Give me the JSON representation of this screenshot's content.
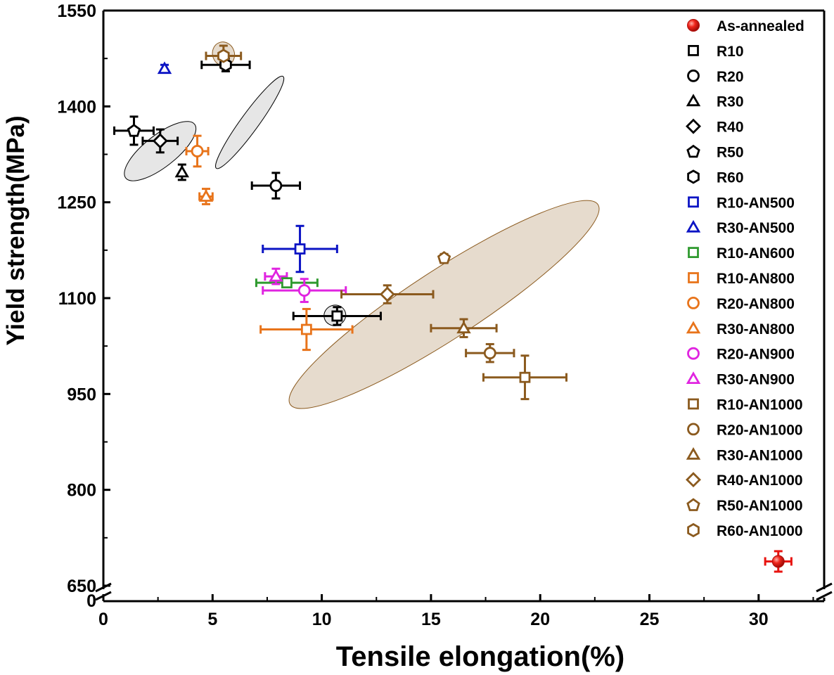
{
  "chart_data": {
    "type": "scatter",
    "xlabel": "Tensile elongation(%)",
    "ylabel": "Yield strength(MPa)",
    "xlim": [
      0,
      33
    ],
    "ylim": [
      650,
      1550
    ],
    "axis_break": {
      "y_lower_label": "0",
      "y_break_at": 650
    },
    "x_ticks": [
      {
        "value": 0,
        "label": "0"
      },
      {
        "value": 5,
        "label": "5"
      },
      {
        "value": 10,
        "label": "10"
      },
      {
        "value": 15,
        "label": "15"
      },
      {
        "value": 20,
        "label": "20"
      },
      {
        "value": 25,
        "label": "25"
      },
      {
        "value": 30,
        "label": "30"
      }
    ],
    "y_ticks": [
      {
        "value": 650,
        "label": "650"
      },
      {
        "value": 800,
        "label": "800"
      },
      {
        "value": 950,
        "label": "950"
      },
      {
        "value": 1100,
        "label": "1100"
      },
      {
        "value": 1250,
        "label": "1250"
      },
      {
        "value": 1400,
        "label": "1400"
      },
      {
        "value": 1550,
        "label": "1550"
      }
    ],
    "grid": false,
    "legend_position": "right",
    "ellipses": [
      {
        "group": "cold-rolled",
        "cx": 2.6,
        "cy": 1330,
        "rx": 2.0,
        "ry": 25,
        "angle_deg": -38,
        "fill": "#e6e6e6",
        "stroke": "#000000"
      },
      {
        "group": "cold-rolled",
        "cx": 6.7,
        "cy": 1375,
        "rx": 2.6,
        "ry": 14,
        "angle_deg": -54,
        "fill": "#e6e6e6",
        "stroke": "#000000"
      },
      {
        "group": "cold-rolled",
        "cx": 10.6,
        "cy": 1073,
        "rx": 0.5,
        "ry": 16,
        "angle_deg": -15,
        "fill": "#e6e6e6",
        "stroke": "#000000"
      },
      {
        "group": "AN1000",
        "cx": 15.6,
        "cy": 1090,
        "rx": 8.4,
        "ry": 54,
        "angle_deg": -33,
        "fill": "#e6dbcd",
        "stroke": "#8b5a1e"
      },
      {
        "group": "AN1000",
        "cx": 5.5,
        "cy": 1482,
        "rx": 0.5,
        "ry": 19,
        "angle_deg": -20,
        "fill": "#e6dbcd",
        "stroke": "#8b5a1e"
      }
    ],
    "series": [
      {
        "name": "As-annealed",
        "marker": "sphere",
        "color": "#e8130f",
        "points": [
          {
            "x": 30.9,
            "y": 688,
            "xerr": 0.6,
            "yerr": 16
          }
        ]
      },
      {
        "name": "R10",
        "marker": "square",
        "color": "#000000",
        "points": [
          {
            "x": 10.7,
            "y": 1072,
            "xerr": 2.0,
            "yerr": 14
          }
        ]
      },
      {
        "name": "R20",
        "marker": "circle",
        "color": "#000000",
        "points": [
          {
            "x": 7.9,
            "y": 1276,
            "xerr": 1.1,
            "yerr": 20
          }
        ]
      },
      {
        "name": "R30",
        "marker": "triangle",
        "color": "#000000",
        "points": [
          {
            "x": 3.6,
            "y": 1297,
            "xerr": 0,
            "yerr": 12
          }
        ]
      },
      {
        "name": "R40",
        "marker": "diamond",
        "color": "#000000",
        "points": [
          {
            "x": 2.6,
            "y": 1346,
            "xerr": 0.8,
            "yerr": 18
          }
        ]
      },
      {
        "name": "R50",
        "marker": "pentagon",
        "color": "#000000",
        "points": [
          {
            "x": 1.4,
            "y": 1362,
            "xerr": 0.9,
            "yerr": 22
          }
        ]
      },
      {
        "name": "R60",
        "marker": "hexagon",
        "color": "#000000",
        "points": [
          {
            "x": 5.6,
            "y": 1465,
            "xerr": 1.1,
            "yerr": 10
          }
        ]
      },
      {
        "name": "R10-AN500",
        "marker": "square",
        "color": "#0c14c4",
        "points": [
          {
            "x": 9.0,
            "y": 1177,
            "xerr": 1.7,
            "yerr": 36
          }
        ]
      },
      {
        "name": "R30-AN500",
        "marker": "triangle",
        "color": "#0c14c4",
        "points": [
          {
            "x": 2.8,
            "y": 1459,
            "xerr": 0,
            "yerr": 6
          }
        ]
      },
      {
        "name": "R10-AN600",
        "marker": "square",
        "color": "#2f9a2f",
        "points": [
          {
            "x": 8.4,
            "y": 1124,
            "xerr": 1.4,
            "yerr": 6
          }
        ]
      },
      {
        "name": "R10-AN800",
        "marker": "square",
        "color": "#e8741b",
        "points": [
          {
            "x": 9.3,
            "y": 1051,
            "xerr": 2.1,
            "yerr": 32
          }
        ]
      },
      {
        "name": "R20-AN800",
        "marker": "circle",
        "color": "#e8741b",
        "points": [
          {
            "x": 4.3,
            "y": 1330,
            "xerr": 0.5,
            "yerr": 24
          }
        ]
      },
      {
        "name": "R30-AN800",
        "marker": "triangle",
        "color": "#e8741b",
        "points": [
          {
            "x": 4.7,
            "y": 1259,
            "xerr": 0.3,
            "yerr": 12
          }
        ]
      },
      {
        "name": "R20-AN900",
        "marker": "circle",
        "color": "#e024e0",
        "points": [
          {
            "x": 9.2,
            "y": 1112,
            "xerr": 1.9,
            "yerr": 18
          }
        ]
      },
      {
        "name": "R30-AN900",
        "marker": "triangle",
        "color": "#e024e0",
        "points": [
          {
            "x": 7.9,
            "y": 1134,
            "xerr": 0.5,
            "yerr": 12
          }
        ]
      },
      {
        "name": "R10-AN1000",
        "marker": "square",
        "color": "#8b5a1e",
        "points": [
          {
            "x": 19.3,
            "y": 976,
            "xerr": 1.9,
            "yerr": 34
          }
        ]
      },
      {
        "name": "R20-AN1000",
        "marker": "circle",
        "color": "#8b5a1e",
        "points": [
          {
            "x": 17.7,
            "y": 1014,
            "xerr": 1.1,
            "yerr": 14
          }
        ]
      },
      {
        "name": "R30-AN1000",
        "marker": "triangle",
        "color": "#8b5a1e",
        "points": [
          {
            "x": 16.5,
            "y": 1053,
            "xerr": 1.5,
            "yerr": 14
          }
        ]
      },
      {
        "name": "R40-AN1000",
        "marker": "diamond",
        "color": "#8b5a1e",
        "points": [
          {
            "x": 13.0,
            "y": 1106,
            "xerr": 2.1,
            "yerr": 14
          }
        ]
      },
      {
        "name": "R50-AN1000",
        "marker": "pentagon",
        "color": "#8b5a1e",
        "points": [
          {
            "x": 15.6,
            "y": 1163,
            "xerr": 0,
            "yerr": 6
          }
        ]
      },
      {
        "name": "R60-AN1000",
        "marker": "hexagon",
        "color": "#8b5a1e",
        "points": [
          {
            "x": 5.5,
            "y": 1479,
            "xerr": 0.8,
            "yerr": 16
          }
        ]
      }
    ]
  }
}
